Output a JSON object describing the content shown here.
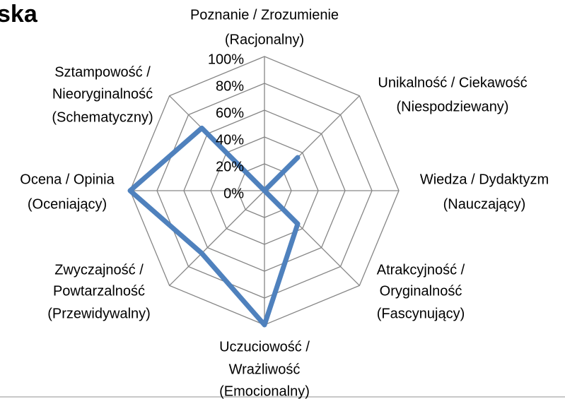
{
  "chart_data": {
    "type": "radar",
    "title": "ska",
    "categories": [
      [
        "Poznanie / Zrozumienie",
        "(Racjonalny)"
      ],
      [
        "Unikalność / Ciekawość",
        "(Niespodziewany)"
      ],
      [
        "Wiedza / Dydaktyzm",
        "(Nauczający)"
      ],
      [
        "Atrakcyjność /",
        "Oryginalność",
        "(Fascynujący)"
      ],
      [
        "Uczuciowość /",
        "Wrażliwość",
        "(Emocionalny)"
      ],
      [
        "Zwyczajność /",
        "Powtarzalność",
        "(Przewidywalny)"
      ],
      [
        "Ocena / Opinia",
        "(Oceniający)"
      ],
      [
        "Sztampowość /",
        "Nieoryginalność",
        "(Schematyczny)"
      ]
    ],
    "series": [
      {
        "color": "#4f81bd",
        "values": [
          0,
          35,
          0,
          35,
          100,
          66,
          100,
          66
        ]
      }
    ],
    "ylim": [
      0,
      100
    ],
    "yticks": [
      {
        "value": 0,
        "label": "0%"
      },
      {
        "value": 20,
        "label": "20%"
      },
      {
        "value": 40,
        "label": "40%"
      },
      {
        "value": 60,
        "label": "60%"
      },
      {
        "value": 80,
        "label": "80%"
      },
      {
        "value": 100,
        "label": "100%"
      }
    ],
    "grid": true
  }
}
